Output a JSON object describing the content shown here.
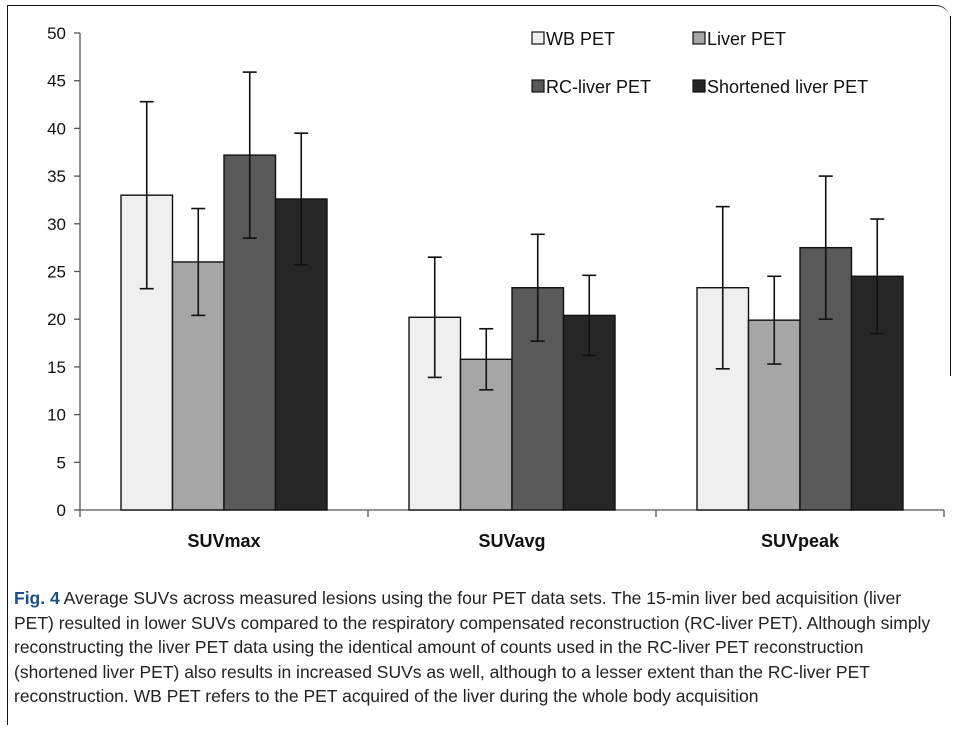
{
  "chart_data": {
    "type": "bar",
    "categories": [
      "SUVmax",
      "SUVavg",
      "SUVpeak"
    ],
    "series": [
      {
        "name": "WB PET",
        "values": [
          33.0,
          20.2,
          23.3
        ],
        "errors": [
          9.8,
          6.3,
          8.5
        ],
        "color": "#efefef"
      },
      {
        "name": "Liver PET",
        "values": [
          26.0,
          15.8,
          19.9
        ],
        "errors": [
          5.6,
          3.2,
          4.6
        ],
        "color": "#a6a6a6"
      },
      {
        "name": "RC-liver PET",
        "values": [
          37.2,
          23.3,
          27.5
        ],
        "errors": [
          8.7,
          5.6,
          7.5
        ],
        "color": "#595959"
      },
      {
        "name": "Shortened liver PET",
        "values": [
          32.6,
          20.4,
          24.5
        ],
        "errors": [
          6.9,
          4.2,
          6.0
        ],
        "color": "#262626"
      }
    ],
    "ylim": [
      0,
      50
    ],
    "yticks": [
      "0",
      "5",
      "10",
      "15",
      "20",
      "25",
      "30",
      "35",
      "40",
      "45",
      "50"
    ],
    "legend_position": "top-right",
    "grid": false
  },
  "caption": {
    "label": "Fig. 4",
    "text": " Average SUVs across measured lesions using the four PET data sets. The 15-min liver bed acquisition (liver PET) resulted in lower SUVs compared to the respiratory compensated reconstruction (RC-liver PET). Although simply reconstructing the liver PET data using the identical amount of counts used in the RC-liver PET reconstruction (shortened liver PET) also results in increased SUVs as well, although to a lesser extent than the RC-liver PET reconstruction. WB PET refers to the PET acquired of the liver during the whole body acquisition"
  }
}
